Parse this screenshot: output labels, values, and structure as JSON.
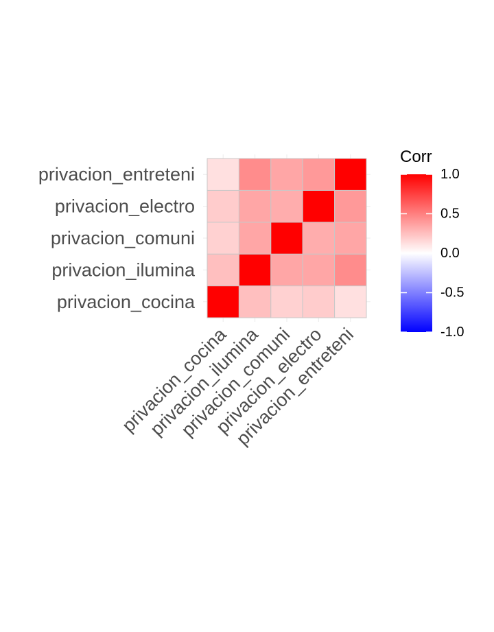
{
  "chart_data": {
    "type": "heatmap",
    "variables": [
      "privacion_cocina",
      "privacion_ilumina",
      "privacion_comuni",
      "privacion_electro",
      "privacion_entreteni"
    ],
    "matrix": [
      [
        1.0,
        0.25,
        0.18,
        0.2,
        0.12
      ],
      [
        0.25,
        1.0,
        0.35,
        0.35,
        0.45
      ],
      [
        0.18,
        0.35,
        1.0,
        0.32,
        0.35
      ],
      [
        0.2,
        0.35,
        0.32,
        1.0,
        0.4
      ],
      [
        0.12,
        0.45,
        0.35,
        0.4,
        1.0
      ]
    ],
    "legend": {
      "title": "Corr",
      "limits": [
        -1,
        1
      ],
      "ticks": [
        "1.0",
        "0.5",
        "0.0",
        "-0.5",
        "-1.0"
      ],
      "tick_values": [
        1.0,
        0.5,
        0.0,
        -0.5,
        -1.0
      ],
      "colors": {
        "low": "#0000ff",
        "mid": "#ffffff",
        "high": "#ff0000"
      }
    },
    "grid": true,
    "legend_position": "right"
  }
}
